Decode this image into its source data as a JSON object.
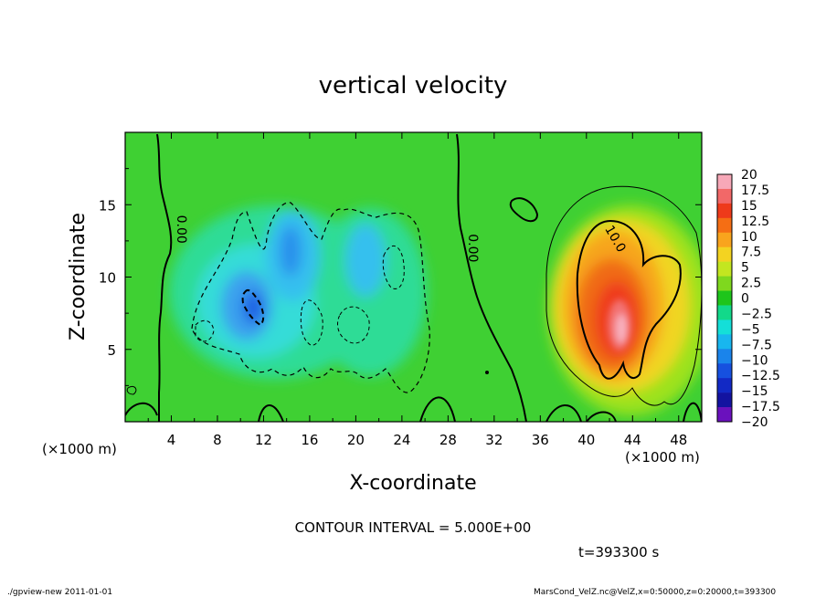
{
  "chart_data": {
    "type": "heatmap",
    "title": "vertical velocity",
    "xlabel": "X-coordinate",
    "ylabel": "Z-coordinate",
    "x_unit": "(×1000 m)",
    "y_unit": "(×1000 m)",
    "xlim": [
      0,
      50
    ],
    "ylim": [
      0,
      20
    ],
    "x_ticks": [
      4,
      8,
      12,
      16,
      20,
      24,
      28,
      32,
      36,
      40,
      44,
      48
    ],
    "y_ticks": [
      5,
      10,
      15
    ],
    "contour_interval_text": "CONTOUR INTERVAL = 5.000E+00",
    "contour_labels": [
      {
        "text": "0.00",
        "x": 4.5,
        "y": 13.3
      },
      {
        "text": "0.00",
        "x": 29.8,
        "y": 12.0
      },
      {
        "text": "10.0",
        "x": 42.2,
        "y": 12.5
      }
    ],
    "colorbar": {
      "labels": [
        "20",
        "17.5",
        "15",
        "12.5",
        "10",
        "7.5",
        "5",
        "2.5",
        "0",
        "−2.5",
        "−5",
        "−7.5",
        "−10",
        "−12.5",
        "−15",
        "−17.5",
        "−20"
      ],
      "colors": [
        "#f7a8b8",
        "#f26868",
        "#ee3a1a",
        "#f56e14",
        "#f9a41d",
        "#f3d321",
        "#c3e620",
        "#7fd81e",
        "#1ec51b",
        "#12d98a",
        "#14dfd8",
        "#18b6ef",
        "#1a84eb",
        "#1650df",
        "#1229c5",
        "#1313a0",
        "#6a11bd"
      ]
    },
    "features": [
      {
        "name": "updraft",
        "x": 43,
        "z": 7,
        "value": 20
      },
      {
        "name": "downdraft",
        "x": 11,
        "z": 8,
        "value": -12.5
      },
      {
        "name": "downdraft",
        "x": 14,
        "z": 12,
        "value": -10
      },
      {
        "name": "downdraft",
        "x": 21,
        "z": 11,
        "value": -7.5
      }
    ]
  },
  "footer": {
    "time": "t=393300 s",
    "left": "./gpview-new  2011-01-01",
    "right": "MarsCond_VelZ.nc@VelZ,x=0:50000,z=0:20000,t=393300"
  }
}
